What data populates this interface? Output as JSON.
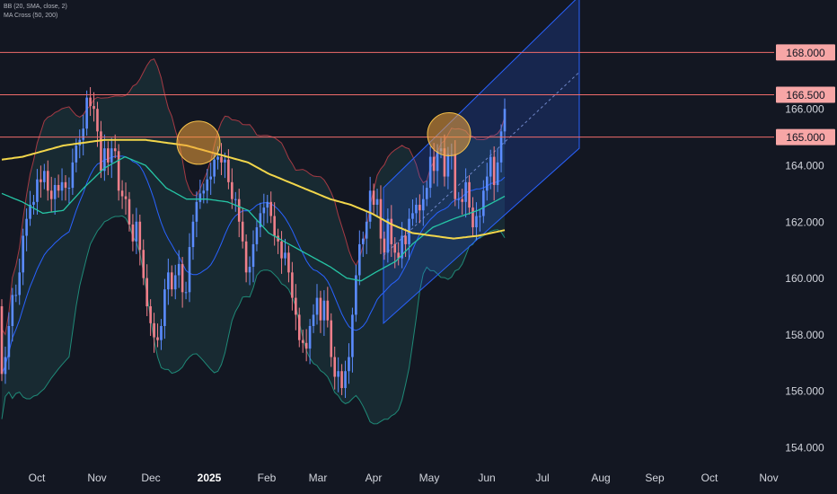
{
  "legend": {
    "bb": "BB (20, SMA, close, 2)",
    "ma": "MA Cross (50, 200)"
  },
  "chart_data": {
    "type": "candlestick",
    "y_axis": {
      "ticks": [
        154,
        156,
        158,
        160,
        162,
        164,
        166
      ],
      "tick_labels": [
        "154.000",
        "156.000",
        "158.000",
        "160.000",
        "162.000",
        "164.000",
        "166.000"
      ],
      "range": [
        153.2,
        170.2
      ]
    },
    "x_axis": {
      "labels": [
        "Oct",
        "Nov",
        "Dec",
        "2025",
        "Feb",
        "Mar",
        "Apr",
        "May",
        "Jun",
        "Jul",
        "Aug",
        "Sep",
        "Oct",
        "Nov"
      ],
      "bold": [
        "2025"
      ]
    },
    "horizontal_levels": [
      {
        "value": 168.0,
        "label": "168.000"
      },
      {
        "value": 166.5,
        "label": "166.500"
      },
      {
        "value": 165.0,
        "label": "165.000"
      }
    ],
    "moving_averages": {
      "ma50": [
        [
          0,
          163.0
        ],
        [
          10,
          162.7
        ],
        [
          20,
          162.3
        ],
        [
          30,
          162.4
        ],
        [
          40,
          163.2
        ],
        [
          50,
          163.9
        ],
        [
          60,
          164.3
        ],
        [
          70,
          164.0
        ],
        [
          80,
          163.2
        ],
        [
          90,
          162.8
        ],
        [
          100,
          162.8
        ],
        [
          110,
          162.7
        ],
        [
          120,
          162.4
        ],
        [
          130,
          161.6
        ],
        [
          140,
          161.2
        ],
        [
          150,
          160.8
        ],
        [
          160,
          160.4
        ],
        [
          168,
          160.0
        ],
        [
          175,
          159.9
        ],
        [
          182,
          160.2
        ],
        [
          192,
          160.6
        ],
        [
          200,
          161.2
        ],
        [
          210,
          161.8
        ],
        [
          220,
          162.1
        ],
        [
          232,
          162.4
        ],
        [
          245,
          162.9
        ]
      ],
      "ma200": [
        [
          0,
          164.2
        ],
        [
          10,
          164.3
        ],
        [
          20,
          164.5
        ],
        [
          30,
          164.7
        ],
        [
          40,
          164.8
        ],
        [
          50,
          164.9
        ],
        [
          60,
          164.9
        ],
        [
          70,
          164.9
        ],
        [
          80,
          164.8
        ],
        [
          90,
          164.7
        ],
        [
          100,
          164.5
        ],
        [
          110,
          164.3
        ],
        [
          120,
          164.1
        ],
        [
          130,
          163.7
        ],
        [
          140,
          163.4
        ],
        [
          150,
          163.1
        ],
        [
          160,
          162.8
        ],
        [
          170,
          162.6
        ],
        [
          180,
          162.3
        ],
        [
          190,
          161.9
        ],
        [
          200,
          161.6
        ],
        [
          210,
          161.5
        ],
        [
          220,
          161.4
        ],
        [
          232,
          161.5
        ],
        [
          245,
          161.7
        ]
      ]
    },
    "trend_channel": {
      "start": {
        "x": 182,
        "lower": 158.4,
        "upper": 163.2
      },
      "end": {
        "x": 278,
        "lower": 164.6,
        "upper": 170.0
      },
      "color": "#2962ff"
    },
    "highlights": [
      {
        "x": 95,
        "y": 164.8,
        "note": "circled top"
      },
      {
        "x": 216,
        "y": 165.1,
        "note": "circled top"
      }
    ],
    "candles": [
      [
        159.0,
        156.6
      ],
      [
        156.6,
        157.2
      ],
      [
        157.2,
        158.3
      ],
      [
        158.3,
        159.4
      ],
      [
        159.4,
        159.4
      ],
      [
        159.4,
        160.2
      ],
      [
        160.2,
        161.5
      ],
      [
        161.5,
        162.1
      ],
      [
        162.1,
        162.6
      ],
      [
        162.6,
        162.7
      ],
      [
        162.7,
        163.5
      ],
      [
        163.5,
        163.4
      ],
      [
        163.4,
        163.8
      ],
      [
        163.8,
        163.1
      ],
      [
        163.1,
        162.8
      ],
      [
        162.8,
        163.3
      ],
      [
        163.3,
        163.1
      ],
      [
        163.1,
        163.4
      ],
      [
        163.4,
        163.2
      ],
      [
        163.2,
        163.2
      ],
      [
        163.2,
        164.1
      ],
      [
        164.1,
        164.7
      ],
      [
        164.7,
        164.9
      ],
      [
        164.9,
        165.3
      ],
      [
        165.3,
        166.4
      ],
      [
        166.4,
        166.1
      ],
      [
        166.1,
        166.0
      ],
      [
        166.0,
        165.2
      ],
      [
        165.2,
        163.8
      ],
      [
        163.8,
        164.6
      ],
      [
        164.6,
        164.1
      ],
      [
        164.1,
        164.6
      ],
      [
        164.6,
        164.5
      ],
      [
        164.5,
        163.1
      ],
      [
        163.1,
        162.9
      ],
      [
        162.9,
        162.8
      ],
      [
        162.8,
        161.9
      ],
      [
        161.9,
        161.3
      ],
      [
        161.3,
        162.0
      ],
      [
        162.0,
        161.0
      ],
      [
        161.0,
        160.0
      ],
      [
        160.0,
        159.0
      ],
      [
        159.0,
        158.4
      ],
      [
        158.4,
        157.9
      ],
      [
        157.9,
        157.8
      ],
      [
        157.8,
        158.3
      ],
      [
        158.3,
        159.6
      ],
      [
        159.6,
        160.2
      ],
      [
        160.2,
        159.6
      ],
      [
        159.6,
        160.1
      ],
      [
        160.1,
        160.5
      ],
      [
        160.5,
        159.5
      ],
      [
        159.5,
        159.5
      ],
      [
        159.5,
        161.1
      ],
      [
        161.1,
        162.0
      ],
      [
        162.0,
        162.7
      ],
      [
        162.7,
        163.0
      ],
      [
        163.0,
        163.1
      ],
      [
        163.1,
        163.5
      ],
      [
        163.5,
        163.6
      ],
      [
        163.6,
        164.2
      ],
      [
        164.2,
        164.3
      ],
      [
        164.3,
        164.1
      ],
      [
        164.1,
        164.2
      ],
      [
        164.2,
        163.4
      ],
      [
        163.4,
        162.8
      ],
      [
        162.8,
        162.8
      ],
      [
        162.8,
        162.0
      ],
      [
        162.0,
        161.3
      ],
      [
        161.3,
        160.2
      ],
      [
        160.2,
        160.4
      ],
      [
        160.4,
        161.2
      ],
      [
        161.2,
        161.8
      ],
      [
        161.8,
        162.3
      ],
      [
        162.3,
        162.5
      ],
      [
        162.5,
        162.7
      ],
      [
        162.7,
        162.2
      ],
      [
        162.2,
        161.5
      ],
      [
        161.5,
        161.3
      ],
      [
        161.3,
        160.7
      ],
      [
        160.7,
        160.9
      ],
      [
        160.9,
        160.2
      ],
      [
        160.2,
        159.3
      ],
      [
        159.3,
        158.7
      ],
      [
        158.7,
        157.8
      ],
      [
        157.8,
        157.7
      ],
      [
        157.7,
        157.5
      ],
      [
        157.5,
        158.3
      ],
      [
        158.3,
        158.7
      ],
      [
        158.7,
        159.3
      ],
      [
        159.3,
        158.5
      ],
      [
        158.5,
        159.2
      ],
      [
        159.2,
        158.5
      ],
      [
        158.5,
        157.2
      ],
      [
        157.2,
        156.5
      ],
      [
        156.5,
        156.7
      ],
      [
        156.7,
        156.1
      ],
      [
        156.1,
        156.7
      ],
      [
        156.7,
        157.2
      ],
      [
        157.2,
        158.7
      ],
      [
        158.7,
        160.1
      ],
      [
        160.1,
        161.2
      ],
      [
        161.2,
        161.4
      ],
      [
        161.4,
        162.0
      ],
      [
        162.0,
        163.1
      ],
      [
        163.1,
        162.6
      ],
      [
        162.6,
        162.8
      ],
      [
        162.8,
        161.4
      ],
      [
        161.4,
        160.9
      ],
      [
        160.9,
        162.1
      ],
      [
        162.1,
        161.2
      ],
      [
        161.2,
        160.9
      ],
      [
        160.9,
        160.7
      ],
      [
        160.7,
        161.5
      ],
      [
        161.5,
        161.2
      ],
      [
        161.2,
        162.1
      ],
      [
        162.1,
        162.3
      ],
      [
        162.3,
        162.6
      ],
      [
        162.6,
        162.4
      ],
      [
        162.4,
        162.8
      ],
      [
        162.8,
        163.2
      ],
      [
        163.2,
        164.3
      ],
      [
        164.3,
        163.8
      ],
      [
        163.8,
        164.5
      ],
      [
        164.5,
        164.6
      ],
      [
        164.6,
        163.6
      ],
      [
        163.6,
        164.4
      ],
      [
        164.4,
        164.4
      ],
      [
        164.4,
        162.8
      ],
      [
        162.8,
        162.8
      ],
      [
        162.8,
        162.7
      ],
      [
        162.7,
        163.4
      ],
      [
        163.4,
        162.5
      ],
      [
        162.5,
        161.8
      ],
      [
        161.8,
        162.2
      ],
      [
        162.2,
        162.2
      ],
      [
        162.2,
        163.1
      ],
      [
        163.1,
        163.6
      ],
      [
        163.6,
        164.3
      ],
      [
        164.3,
        163.3
      ],
      [
        163.3,
        164.1
      ],
      [
        164.1,
        165.2
      ],
      [
        165.2,
        166.0
      ]
    ]
  }
}
